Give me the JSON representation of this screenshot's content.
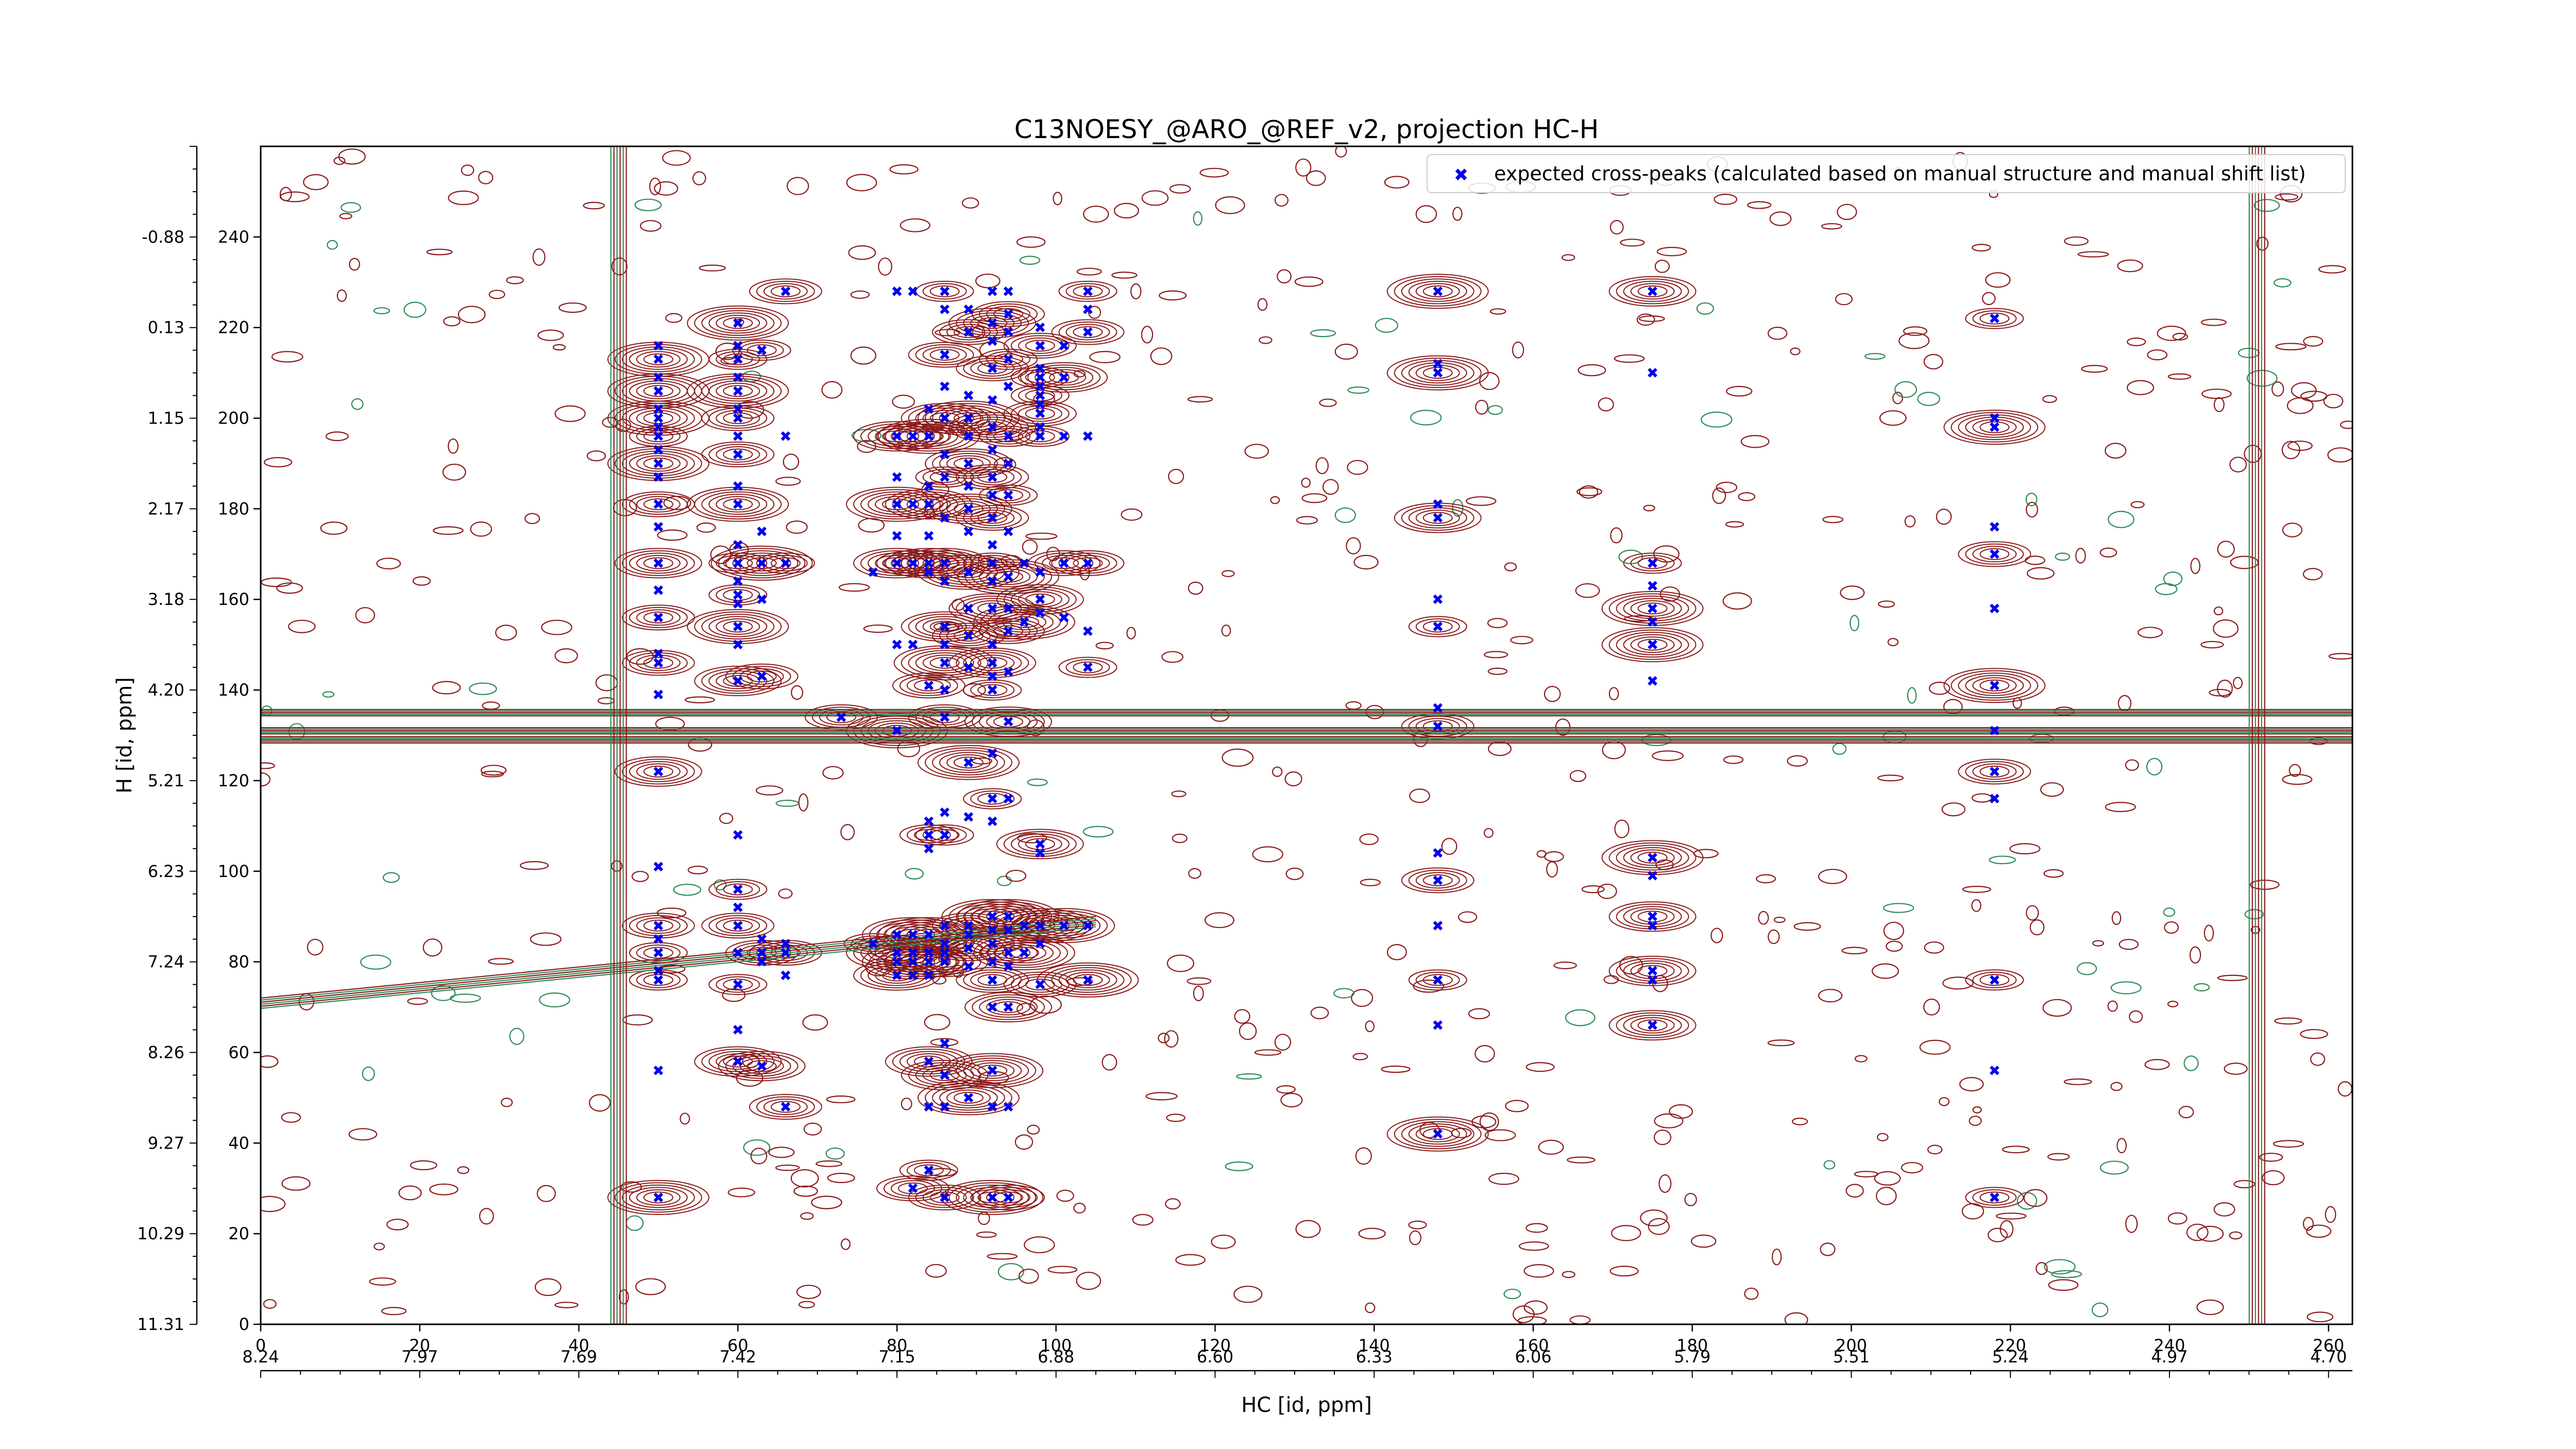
{
  "chart_data": {
    "type": "scatter",
    "title": "C13NOESY_@ARO_@REF_v2, projection HC-H",
    "xlabel": "HC [id, ppm]",
    "ylabel": "H [id, ppm]",
    "xlim": [
      0,
      263
    ],
    "ylim": [
      0,
      260
    ],
    "x_ticks": [
      0,
      20,
      40,
      60,
      80,
      100,
      120,
      140,
      160,
      180,
      200,
      220,
      240,
      260
    ],
    "y_ticks": [
      0,
      20,
      40,
      60,
      80,
      100,
      120,
      140,
      160,
      180,
      200,
      220,
      240
    ],
    "x_ppm_ticks": [
      {
        "x": 0,
        "label": "8.24"
      },
      {
        "x": 20,
        "label": "7.97"
      },
      {
        "x": 40,
        "label": "7.69"
      },
      {
        "x": 60,
        "label": "7.42"
      },
      {
        "x": 80,
        "label": "7.15"
      },
      {
        "x": 100,
        "label": "6.88"
      },
      {
        "x": 120,
        "label": "6.60"
      },
      {
        "x": 140,
        "label": "6.33"
      },
      {
        "x": 160,
        "label": "6.06"
      },
      {
        "x": 180,
        "label": "5.79"
      },
      {
        "x": 200,
        "label": "5.51"
      },
      {
        "x": 220,
        "label": "5.24"
      },
      {
        "x": 240,
        "label": "4.97"
      },
      {
        "x": 260,
        "label": "4.70"
      }
    ],
    "y_ppm_ticks": [
      {
        "y": 0,
        "label": "11.31"
      },
      {
        "y": 20,
        "label": "10.29"
      },
      {
        "y": 40,
        "label": "9.27"
      },
      {
        "y": 60,
        "label": "8.26"
      },
      {
        "y": 80,
        "label": "7.24"
      },
      {
        "y": 100,
        "label": "6.23"
      },
      {
        "y": 120,
        "label": "5.21"
      },
      {
        "y": 140,
        "label": "4.20"
      },
      {
        "y": 160,
        "label": "3.18"
      },
      {
        "y": 180,
        "label": "2.17"
      },
      {
        "y": 200,
        "label": "1.15"
      },
      {
        "y": 220,
        "label": "0.13"
      },
      {
        "y": 240,
        "label": "-0.88"
      }
    ],
    "legend": {
      "placement": "top-right",
      "label": "expected cross-peaks (calculated based on manual structure and manual shift list)"
    },
    "colors": {
      "peaks": "#0000ee",
      "contour_positive": "#8b1a1a",
      "contour_negative": "#2e8b57"
    },
    "expected_peaks": {
      "columns": [
        {
          "x": 50,
          "y": [
            28,
            56,
            76,
            78,
            82,
            85,
            88,
            101,
            122,
            139,
            146,
            148,
            156,
            162,
            168,
            176,
            181,
            187,
            190,
            193,
            196,
            198,
            200,
            202,
            206,
            209,
            213,
            216
          ]
        },
        {
          "x": 60,
          "y": [
            58,
            65,
            75,
            82,
            88,
            92,
            96,
            108,
            142,
            150,
            154,
            159,
            161,
            164,
            168,
            172,
            181,
            185,
            192,
            196,
            200,
            202,
            206,
            209,
            213,
            216,
            221
          ]
        },
        {
          "x": 63,
          "y": [
            57,
            80,
            82,
            85,
            143,
            160,
            168,
            175,
            215
          ]
        },
        {
          "x": 66,
          "y": [
            48,
            77,
            82,
            84,
            168,
            196,
            228
          ]
        },
        {
          "x": 73,
          "y": [
            134
          ]
        },
        {
          "x": 77,
          "y": [
            84,
            166
          ]
        },
        {
          "x": 80,
          "y": [
            77,
            80,
            82,
            86,
            131,
            150,
            168,
            174,
            181,
            187,
            196,
            228
          ]
        },
        {
          "x": 82,
          "y": [
            30,
            77,
            80,
            82,
            86,
            150,
            168,
            181,
            196,
            228
          ]
        },
        {
          "x": 84,
          "y": [
            34,
            48,
            58,
            77,
            80,
            82,
            86,
            105,
            108,
            111,
            141,
            166,
            168,
            174,
            181,
            185,
            196,
            202
          ]
        },
        {
          "x": 86,
          "y": [
            28,
            48,
            55,
            62,
            80,
            82,
            84,
            88,
            108,
            113,
            134,
            140,
            146,
            150,
            154,
            164,
            168,
            178,
            187,
            192,
            200,
            207,
            214,
            224,
            228
          ]
        },
        {
          "x": 89,
          "y": [
            50,
            79,
            83,
            86,
            88,
            112,
            124,
            145,
            152,
            158,
            166,
            175,
            180,
            185,
            190,
            196,
            200,
            205,
            219,
            224
          ]
        },
        {
          "x": 92,
          "y": [
            28,
            48,
            56,
            70,
            76,
            80,
            84,
            87,
            90,
            111,
            116,
            126,
            140,
            143,
            146,
            150,
            158,
            164,
            168,
            172,
            178,
            183,
            187,
            193,
            198,
            204,
            211,
            217,
            221,
            228
          ]
        },
        {
          "x": 94,
          "y": [
            28,
            48,
            70,
            79,
            82,
            87,
            90,
            116,
            133,
            144,
            153,
            158,
            165,
            175,
            183,
            190,
            196,
            207,
            213,
            219,
            223,
            228
          ]
        },
        {
          "x": 96,
          "y": [
            82,
            88,
            155,
            168
          ]
        },
        {
          "x": 98,
          "y": [
            75,
            84,
            88,
            104,
            106,
            157,
            160,
            166,
            196,
            198,
            201,
            203,
            205,
            207,
            209,
            211,
            216,
            220
          ]
        },
        {
          "x": 101,
          "y": [
            88,
            156,
            168,
            196,
            209,
            216
          ]
        },
        {
          "x": 104,
          "y": [
            76,
            88,
            145,
            153,
            168,
            196,
            219,
            224,
            228
          ]
        },
        {
          "x": 148,
          "y": [
            42,
            66,
            76,
            88,
            98,
            104,
            132,
            136,
            154,
            160,
            178,
            181,
            210,
            212,
            228
          ]
        },
        {
          "x": 175,
          "y": [
            66,
            76,
            78,
            88,
            90,
            99,
            103,
            142,
            150,
            155,
            158,
            163,
            168,
            210,
            228
          ]
        },
        {
          "x": 218,
          "y": [
            28,
            56,
            76,
            116,
            122,
            131,
            141,
            158,
            170,
            176,
            198,
            200,
            222
          ]
        }
      ]
    },
    "contour_features": {
      "horizontal_bands_y": [
        131,
        129,
        135
      ],
      "vertical_bands_x": [
        45,
        251
      ]
    }
  }
}
